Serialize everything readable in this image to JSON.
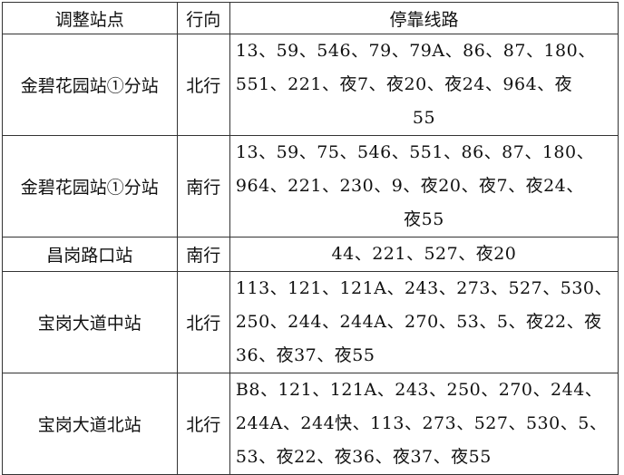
{
  "headers": [
    "调整站点",
    "行向",
    "停靠线路"
  ],
  "rows": [
    {
      "station": "金碧花园站①分站",
      "direction": "北行",
      "align": "center",
      "lines": [
        "13、59、546、79、79A、86、87、180、",
        "551、221、夜7、夜20、夜24、964、夜",
        "55"
      ]
    },
    {
      "station": "金碧花园站①分站",
      "direction": "南行",
      "align": "center",
      "lines": [
        "13、59、75、546、551、86、87、180、",
        "964、221、230、9、夜20、夜7、夜24、",
        "夜55"
      ]
    },
    {
      "station": "昌岗路口站",
      "direction": "南行",
      "align": "single",
      "lines": [
        "44、221、527、夜20"
      ]
    },
    {
      "station": "宝岗大道中站",
      "direction": "北行",
      "align": "left",
      "lines": [
        "113、121、121A、243、273、527、530、",
        "250、244、244A、270、53、5、夜22、夜",
        "36、夜37、夜55"
      ]
    },
    {
      "station": "宝岗大道北站",
      "direction": "北行",
      "align": "left",
      "lines": [
        "B8、121、121A、243、250、270、244、",
        "244A、244快、113、273、527、530、5、",
        "53、夜22、夜36、夜37、夜55"
      ]
    }
  ]
}
